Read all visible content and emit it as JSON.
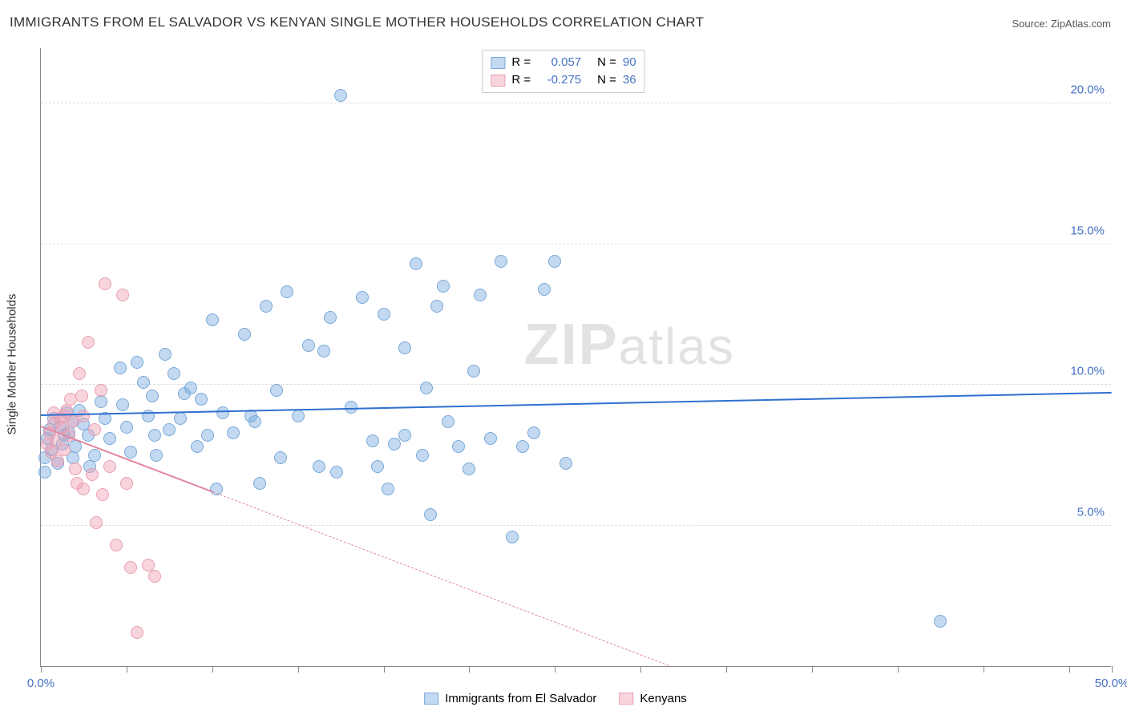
{
  "title": "IMMIGRANTS FROM EL SALVADOR VS KENYAN SINGLE MOTHER HOUSEHOLDS CORRELATION CHART",
  "source": "Source: ZipAtlas.com",
  "watermark": "ZIPatlas",
  "y_axis_label": "Single Mother Households",
  "chart": {
    "type": "scatter",
    "xlim": [
      0,
      50
    ],
    "ylim": [
      0,
      22
    ],
    "x_ticks": [
      0,
      4,
      8,
      12,
      16,
      20,
      24,
      28,
      32,
      36,
      40,
      44,
      48,
      50
    ],
    "x_tick_labels": {
      "0": "0.0%",
      "50": "50.0%"
    },
    "x_tick_label_colors": {
      "0": "#4472c4",
      "50": "#4472c4"
    },
    "y_gridlines": [
      5,
      10,
      15,
      20
    ],
    "y_tick_labels": {
      "5": "5.0%",
      "10": "10.0%",
      "15": "15.0%",
      "20": "20.0%"
    },
    "y_tick_color": "#4472c4",
    "grid_color": "#dddddd",
    "axis_color": "#888888",
    "background": "#ffffff",
    "series": [
      {
        "name": "Immigrants from El Salvador",
        "fill": "rgba(120,170,225,0.45)",
        "stroke": "#7aa9d8",
        "r_label": "R =",
        "r_value": "0.057",
        "n_label": "N =",
        "n_value": "90",
        "trend": {
          "y_at_x0": 8.9,
          "y_at_x50": 9.7,
          "color": "#2f6fd0",
          "width": 2.5,
          "dash": false
        },
        "points": [
          [
            0.2,
            7.4
          ],
          [
            0.3,
            8.1
          ],
          [
            0.4,
            8.4
          ],
          [
            0.5,
            7.7
          ],
          [
            0.6,
            8.8
          ],
          [
            0.8,
            7.2
          ],
          [
            0.2,
            6.9
          ],
          [
            0.9,
            8.5
          ],
          [
            1.0,
            7.9
          ],
          [
            1.1,
            8.2
          ],
          [
            1.2,
            9.0
          ],
          [
            1.3,
            8.3
          ],
          [
            1.5,
            8.7
          ],
          [
            1.6,
            7.8
          ],
          [
            1.5,
            7.4
          ],
          [
            1.8,
            9.1
          ],
          [
            2.0,
            8.6
          ],
          [
            2.2,
            8.2
          ],
          [
            2.5,
            7.5
          ],
          [
            2.8,
            9.4
          ],
          [
            3.0,
            8.8
          ],
          [
            3.2,
            8.1
          ],
          [
            2.3,
            7.1
          ],
          [
            3.8,
            9.3
          ],
          [
            4.0,
            8.5
          ],
          [
            4.2,
            7.6
          ],
          [
            4.5,
            10.8
          ],
          [
            5.0,
            8.9
          ],
          [
            5.2,
            9.6
          ],
          [
            5.3,
            8.2
          ],
          [
            5.4,
            7.5
          ],
          [
            5.8,
            11.1
          ],
          [
            6.0,
            8.4
          ],
          [
            6.2,
            10.4
          ],
          [
            6.5,
            8.8
          ],
          [
            7.5,
            9.5
          ],
          [
            7.8,
            8.2
          ],
          [
            8.0,
            12.3
          ],
          [
            8.2,
            6.3
          ],
          [
            8.5,
            9.0
          ],
          [
            9.0,
            8.3
          ],
          [
            9.5,
            11.8
          ],
          [
            10.0,
            8.7
          ],
          [
            10.2,
            6.5
          ],
          [
            10.5,
            12.8
          ],
          [
            11.0,
            9.8
          ],
          [
            11.2,
            7.4
          ],
          [
            11.5,
            13.3
          ],
          [
            12.0,
            8.9
          ],
          [
            12.5,
            11.4
          ],
          [
            13.0,
            7.1
          ],
          [
            13.2,
            11.2
          ],
          [
            13.5,
            12.4
          ],
          [
            13.8,
            6.9
          ],
          [
            14.0,
            20.3
          ],
          [
            14.5,
            9.2
          ],
          [
            15.0,
            13.1
          ],
          [
            15.5,
            8.0
          ],
          [
            15.7,
            7.1
          ],
          [
            16.0,
            12.5
          ],
          [
            16.5,
            7.9
          ],
          [
            17.0,
            11.3
          ],
          [
            17.0,
            8.2
          ],
          [
            17.5,
            14.3
          ],
          [
            17.8,
            7.5
          ],
          [
            18.0,
            9.9
          ],
          [
            18.2,
            5.4
          ],
          [
            18.5,
            12.8
          ],
          [
            19.0,
            8.7
          ],
          [
            16.2,
            6.3
          ],
          [
            20.0,
            7.0
          ],
          [
            20.5,
            13.2
          ],
          [
            21.0,
            8.1
          ],
          [
            21.5,
            14.4
          ],
          [
            22.0,
            4.6
          ],
          [
            22.5,
            7.8
          ],
          [
            23.0,
            8.3
          ],
          [
            23.5,
            13.4
          ],
          [
            24.0,
            14.4
          ],
          [
            24.5,
            7.2
          ],
          [
            18.8,
            13.5
          ],
          [
            20.2,
            10.5
          ],
          [
            19.5,
            7.8
          ],
          [
            6.7,
            9.7
          ],
          [
            7.0,
            9.9
          ],
          [
            7.3,
            7.8
          ],
          [
            9.8,
            8.9
          ],
          [
            42.0,
            1.6
          ],
          [
            3.7,
            10.6
          ],
          [
            4.8,
            10.1
          ]
        ]
      },
      {
        "name": "Kenyans",
        "fill": "rgba(240,160,180,0.45)",
        "stroke": "#e8a0b2",
        "r_label": "R =",
        "r_value": "-0.275",
        "n_label": "N =",
        "n_value": "36",
        "trend": {
          "y_at_x0": 8.5,
          "y_at_x50": -6.0,
          "color": "#e485a0",
          "width": 2,
          "dash_after_x": 8
        },
        "points": [
          [
            0.3,
            7.9
          ],
          [
            0.4,
            8.3
          ],
          [
            0.5,
            7.6
          ],
          [
            0.6,
            8.6
          ],
          [
            0.7,
            8.0
          ],
          [
            0.8,
            7.3
          ],
          [
            0.9,
            8.8
          ],
          [
            1.0,
            8.5
          ],
          [
            1.1,
            7.7
          ],
          [
            1.2,
            9.1
          ],
          [
            1.3,
            8.2
          ],
          [
            1.4,
            9.5
          ],
          [
            1.5,
            8.7
          ],
          [
            1.6,
            7.0
          ],
          [
            1.8,
            10.4
          ],
          [
            2.0,
            8.9
          ],
          [
            2.2,
            11.5
          ],
          [
            2.5,
            8.4
          ],
          [
            2.8,
            9.8
          ],
          [
            3.0,
            13.6
          ],
          [
            3.2,
            7.1
          ],
          [
            3.5,
            4.3
          ],
          [
            3.8,
            13.2
          ],
          [
            4.0,
            6.5
          ],
          [
            4.2,
            3.5
          ],
          [
            4.5,
            1.2
          ],
          [
            5.0,
            3.6
          ],
          [
            5.3,
            3.2
          ],
          [
            2.6,
            5.1
          ],
          [
            2.0,
            6.3
          ],
          [
            2.4,
            6.8
          ],
          [
            2.9,
            6.1
          ],
          [
            1.7,
            6.5
          ],
          [
            1.9,
            9.6
          ],
          [
            0.6,
            9.0
          ],
          [
            1.1,
            8.9
          ]
        ]
      }
    ]
  },
  "legend_top": {
    "rows": [
      {
        "swatch_fill": "rgba(120,170,225,0.45)",
        "swatch_stroke": "#7aa9d8",
        "r_lbl": "R =",
        "r_val": "0.057",
        "n_lbl": "N =",
        "n_val": "90"
      },
      {
        "swatch_fill": "rgba(240,160,180,0.45)",
        "swatch_stroke": "#e8a0b2",
        "r_lbl": "R =",
        "r_val": "-0.275",
        "n_lbl": "N =",
        "n_val": "36"
      }
    ],
    "value_color": "#4472c4"
  },
  "legend_bottom": {
    "items": [
      {
        "swatch_fill": "rgba(120,170,225,0.45)",
        "swatch_stroke": "#7aa9d8",
        "label": "Immigrants from El Salvador"
      },
      {
        "swatch_fill": "rgba(240,160,180,0.45)",
        "swatch_stroke": "#e8a0b2",
        "label": "Kenyans"
      }
    ]
  }
}
